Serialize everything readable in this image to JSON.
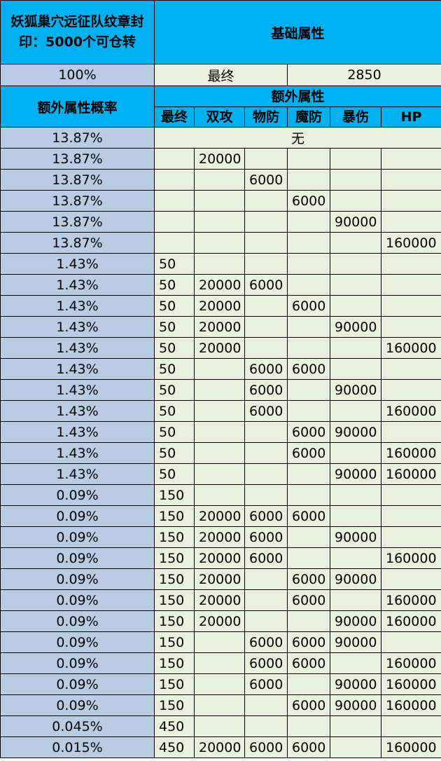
{
  "table": {
    "title": "妖狐巢穴远征队纹章封印：5000个可仓转",
    "base_header": "基础属性",
    "base_row": {
      "probability": "100%",
      "attribute": "最终",
      "value": "2850"
    },
    "extra_prob_header": "额外属性概率",
    "extra_header": "额外属性",
    "columns": [
      "最终",
      "双攻",
      "物防",
      "魔防",
      "暴伤",
      "HP"
    ],
    "none_label": "无",
    "rows": [
      {
        "prob": "13.87%",
        "none": true,
        "vals": [
          "",
          "",
          "",
          "",
          "",
          ""
        ]
      },
      {
        "prob": "13.87%",
        "vals": [
          "",
          "20000",
          "",
          "",
          "",
          ""
        ]
      },
      {
        "prob": "13.87%",
        "vals": [
          "",
          "",
          "6000",
          "",
          "",
          ""
        ]
      },
      {
        "prob": "13.87%",
        "vals": [
          "",
          "",
          "",
          "6000",
          "",
          ""
        ]
      },
      {
        "prob": "13.87%",
        "vals": [
          "",
          "",
          "",
          "",
          "90000",
          ""
        ]
      },
      {
        "prob": "13.87%",
        "vals": [
          "",
          "",
          "",
          "",
          "",
          "160000"
        ]
      },
      {
        "prob": "1.43%",
        "vals": [
          "50",
          "",
          "",
          "",
          "",
          ""
        ]
      },
      {
        "prob": "1.43%",
        "vals": [
          "50",
          "20000",
          "6000",
          "",
          "",
          ""
        ]
      },
      {
        "prob": "1.43%",
        "vals": [
          "50",
          "20000",
          "",
          "6000",
          "",
          ""
        ]
      },
      {
        "prob": "1.43%",
        "vals": [
          "50",
          "20000",
          "",
          "",
          "90000",
          ""
        ]
      },
      {
        "prob": "1.43%",
        "vals": [
          "50",
          "20000",
          "",
          "",
          "",
          "160000"
        ]
      },
      {
        "prob": "1.43%",
        "vals": [
          "50",
          "",
          "6000",
          "6000",
          "",
          ""
        ]
      },
      {
        "prob": "1.43%",
        "vals": [
          "50",
          "",
          "6000",
          "",
          "90000",
          ""
        ]
      },
      {
        "prob": "1.43%",
        "vals": [
          "50",
          "",
          "6000",
          "",
          "",
          "160000"
        ]
      },
      {
        "prob": "1.43%",
        "vals": [
          "50",
          "",
          "",
          "6000",
          "90000",
          ""
        ]
      },
      {
        "prob": "1.43%",
        "vals": [
          "50",
          "",
          "",
          "6000",
          "",
          "160000"
        ]
      },
      {
        "prob": "1.43%",
        "vals": [
          "50",
          "",
          "",
          "",
          "90000",
          "160000"
        ]
      },
      {
        "prob": "0.09%",
        "vals": [
          "150",
          "",
          "",
          "",
          "",
          ""
        ]
      },
      {
        "prob": "0.09%",
        "vals": [
          "150",
          "20000",
          "6000",
          "6000",
          "",
          ""
        ]
      },
      {
        "prob": "0.09%",
        "vals": [
          "150",
          "20000",
          "6000",
          "",
          "90000",
          ""
        ]
      },
      {
        "prob": "0.09%",
        "vals": [
          "150",
          "20000",
          "6000",
          "",
          "",
          "160000"
        ]
      },
      {
        "prob": "0.09%",
        "vals": [
          "150",
          "20000",
          "",
          "6000",
          "90000",
          ""
        ]
      },
      {
        "prob": "0.09%",
        "vals": [
          "150",
          "20000",
          "",
          "6000",
          "",
          "160000"
        ]
      },
      {
        "prob": "0.09%",
        "vals": [
          "150",
          "20000",
          "",
          "",
          "90000",
          "160000"
        ]
      },
      {
        "prob": "0.09%",
        "vals": [
          "150",
          "",
          "6000",
          "6000",
          "90000",
          ""
        ]
      },
      {
        "prob": "0.09%",
        "vals": [
          "150",
          "",
          "6000",
          "6000",
          "",
          "160000"
        ]
      },
      {
        "prob": "0.09%",
        "vals": [
          "150",
          "",
          "6000",
          "",
          "90000",
          "160000"
        ]
      },
      {
        "prob": "0.09%",
        "vals": [
          "150",
          "",
          "",
          "6000",
          "90000",
          "160000"
        ]
      },
      {
        "prob": "0.045%",
        "vals": [
          "450",
          "",
          "",
          "",
          "",
          ""
        ]
      },
      {
        "prob": "0.015%",
        "vals": [
          "450",
          "20000",
          "6000",
          "6000",
          "",
          "160000"
        ]
      }
    ]
  },
  "colors": {
    "header_bg": "#00b0f0",
    "probability_bg": "#b8cce4",
    "value_bg": "#ebf0de",
    "border": "#000000"
  }
}
